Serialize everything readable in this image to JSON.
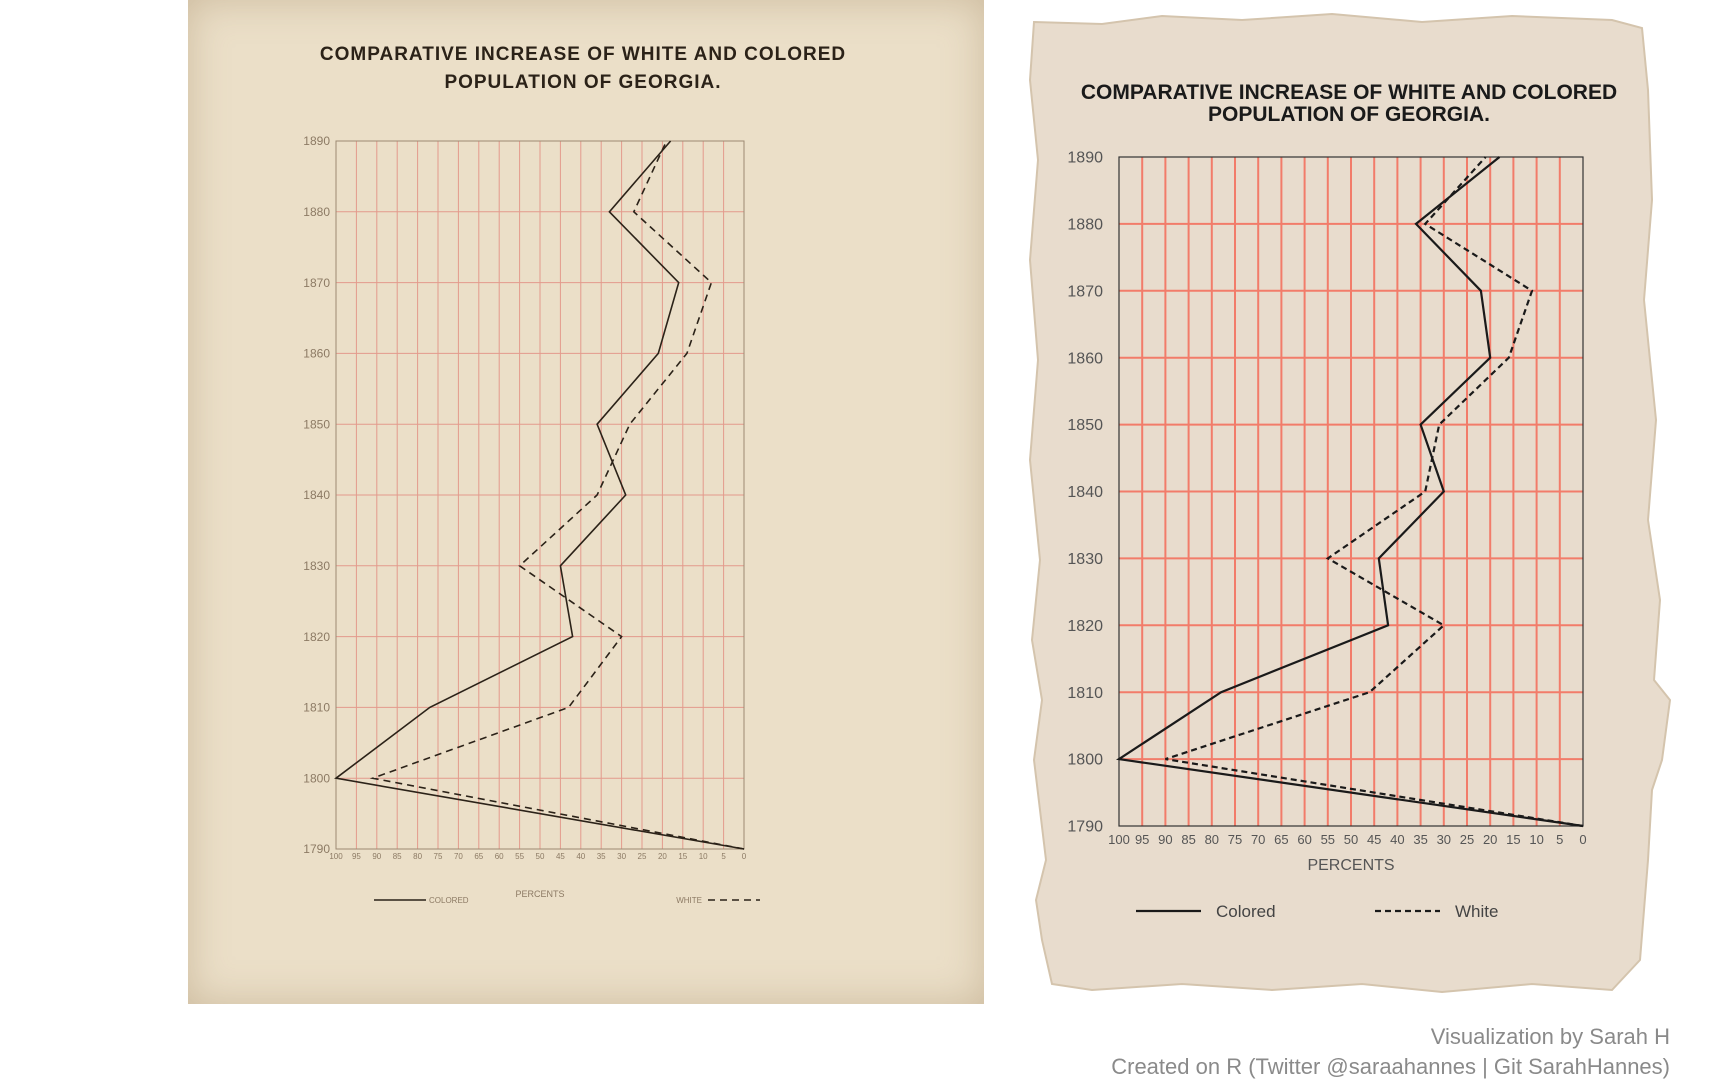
{
  "colors": {
    "paper_left": "#ebdfc8",
    "paper_right": "#e8dccd",
    "grid_left": "#e39a8c",
    "grid_right": "#f27c6a",
    "ink": "#1a1a1a"
  },
  "chart_data": [
    {
      "panel": "original",
      "type": "line",
      "title_lines": [
        "COMPARATIVE INCREASE OF WHITE AND COLORED",
        "POPULATION OF GEORGIA."
      ],
      "y": [
        1790,
        1800,
        1810,
        1820,
        1830,
        1840,
        1850,
        1860,
        1870,
        1880,
        1890
      ],
      "yticks": [
        "1790",
        "1800",
        "1810",
        "1820",
        "1830",
        "1840",
        "1850",
        "1860",
        "1870",
        "1880",
        "1890"
      ],
      "xticks": [
        "100",
        "95",
        "90",
        "85",
        "80",
        "75",
        "70",
        "65",
        "60",
        "55",
        "50",
        "45",
        "40",
        "35",
        "30",
        "25",
        "20",
        "15",
        "10",
        "5",
        "0"
      ],
      "xlim": [
        100,
        0
      ],
      "ylim": [
        1790,
        1890
      ],
      "xlabel": "PERCENTS",
      "grid": true,
      "series": [
        {
          "name": "COLORED",
          "style": "solid",
          "values": [
            0,
            100,
            77,
            42,
            45,
            29,
            36,
            21,
            16,
            33,
            18
          ]
        },
        {
          "name": "WHITE",
          "style": "dashed",
          "values": [
            0,
            91,
            43,
            30,
            55,
            36,
            28,
            14,
            8,
            27,
            19
          ]
        }
      ],
      "legend": "bottom",
      "signature": "476"
    },
    {
      "panel": "recreation",
      "type": "line",
      "title_lines": [
        "COMPARATIVE INCREASE OF WHITE AND COLORED",
        "POPULATION OF GEORGIA."
      ],
      "y": [
        1790,
        1800,
        1810,
        1820,
        1830,
        1840,
        1850,
        1860,
        1870,
        1880,
        1890
      ],
      "yticks": [
        "1790",
        "1800",
        "1810",
        "1820",
        "1830",
        "1840",
        "1850",
        "1860",
        "1870",
        "1880",
        "1890"
      ],
      "xticks": [
        "100",
        "95",
        "90",
        "85",
        "80",
        "75",
        "70",
        "65",
        "60",
        "55",
        "50",
        "45",
        "40",
        "35",
        "30",
        "25",
        "20",
        "15",
        "10",
        "5",
        "0"
      ],
      "xlim": [
        100,
        0
      ],
      "ylim": [
        1790,
        1890
      ],
      "xlabel": "PERCENTS",
      "grid": true,
      "series": [
        {
          "name": "Colored",
          "style": "solid",
          "values": [
            0,
            100,
            78,
            42,
            44,
            30,
            35,
            20,
            22,
            36,
            18
          ]
        },
        {
          "name": "White",
          "style": "dashed",
          "values": [
            0,
            90,
            46,
            30,
            55,
            34,
            31,
            16,
            11,
            34,
            21
          ]
        }
      ],
      "legend": "bottom"
    }
  ],
  "credits": {
    "line1": "Visualization by Sarah H",
    "line2": "Created on R (Twitter @saraahannes | Git SarahHannes)"
  }
}
